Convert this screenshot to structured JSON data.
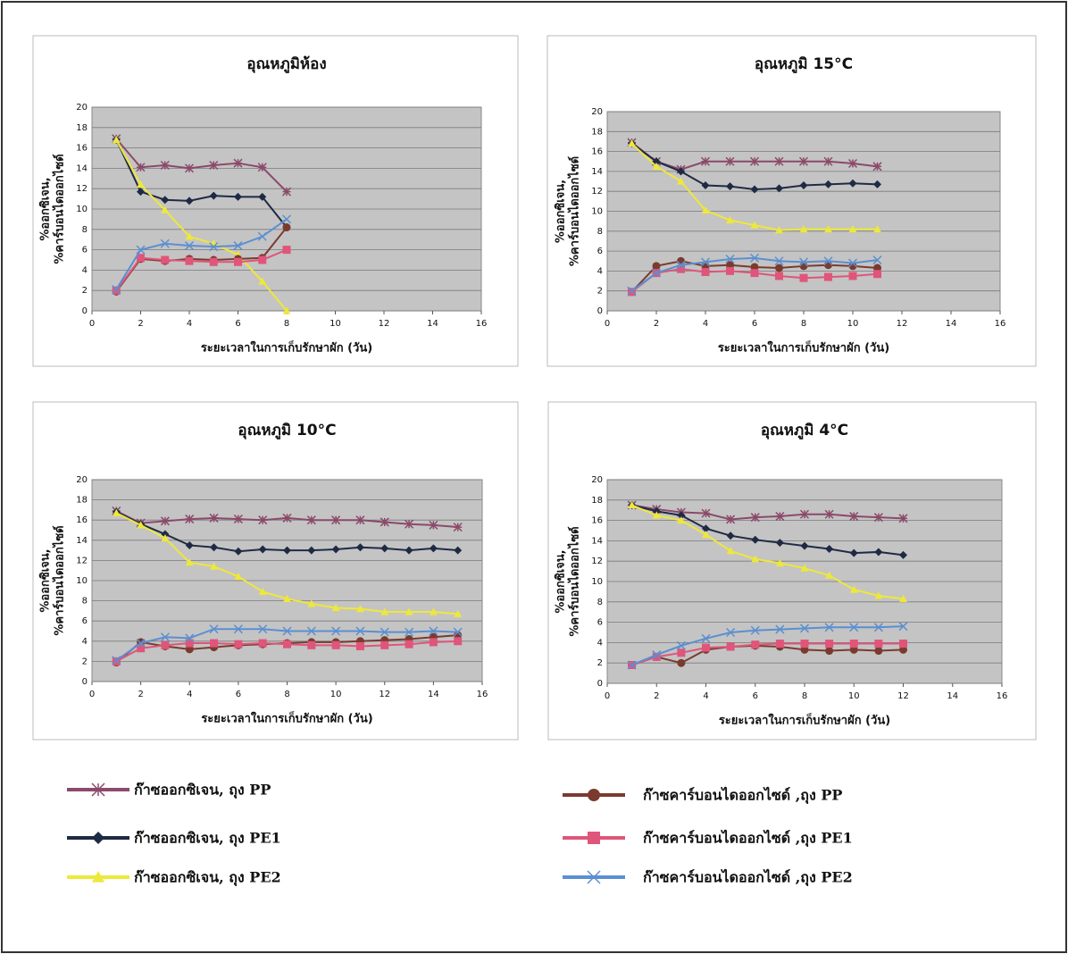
{
  "chart_data": [
    {
      "type": "line",
      "title": "อุณหภูมิห้อง",
      "xlabel": "ระยะเวลาในการเก็บรักษาผัก (วัน)",
      "ylabel": [
        "%ออกซิเจน,",
        "%คาร์บอนไดออกไซด์"
      ],
      "x": [
        1,
        2,
        3,
        4,
        5,
        6,
        7,
        8
      ],
      "xlim": [
        0,
        16
      ],
      "xticks": [
        0,
        2,
        4,
        6,
        8,
        10,
        12,
        14,
        16
      ],
      "ylim": [
        0,
        20
      ],
      "yticks": [
        0,
        2,
        4,
        6,
        8,
        10,
        12,
        14,
        16,
        18,
        20
      ],
      "grid": true,
      "series": [
        {
          "values": [
            16.9,
            14.1,
            14.3,
            14.0,
            14.3,
            14.5,
            14.1,
            11.7
          ]
        },
        {
          "values": [
            16.8,
            11.7,
            10.9,
            10.8,
            11.3,
            11.2,
            11.2,
            8.2
          ]
        },
        {
          "values": [
            16.8,
            12.4,
            9.9,
            7.3,
            6.6,
            5.5,
            2.9,
            0
          ]
        },
        {
          "values": [
            1.9,
            5.1,
            4.9,
            5.1,
            5.0,
            5.1,
            5.2,
            8.2
          ]
        },
        {
          "values": [
            2.0,
            5.2,
            5.0,
            4.9,
            4.8,
            4.8,
            5.0,
            6.0
          ]
        },
        {
          "values": [
            2.1,
            6.0,
            6.6,
            6.4,
            6.3,
            6.4,
            7.3,
            9.0
          ]
        }
      ]
    },
    {
      "type": "line",
      "title": "อุณหภูมิ 15°C",
      "xlabel": "ระยะเวลาในการเก็บรักษาผัก (วัน)",
      "ylabel": [
        "%ออกซิเจน,",
        "%คาร์บอนไดออกไซด์"
      ],
      "x": [
        1,
        2,
        3,
        4,
        5,
        6,
        7,
        8,
        9,
        10,
        11
      ],
      "xlim": [
        0,
        16
      ],
      "xticks": [
        0,
        2,
        4,
        6,
        8,
        10,
        12,
        14,
        16
      ],
      "ylim": [
        0,
        20
      ],
      "yticks": [
        0,
        2,
        4,
        6,
        8,
        10,
        12,
        14,
        16,
        18,
        20
      ],
      "grid": true,
      "series": [
        {
          "values": [
            16.9,
            15.0,
            14.2,
            15.0,
            15.0,
            15.0,
            15.0,
            15.0,
            15.0,
            14.8,
            14.5
          ]
        },
        {
          "values": [
            16.8,
            15.0,
            14.0,
            12.6,
            12.5,
            12.2,
            12.3,
            12.6,
            12.7,
            12.8,
            12.7
          ]
        },
        {
          "values": [
            16.8,
            14.5,
            13.0,
            10.1,
            9.1,
            8.6,
            8.1,
            8.2,
            8.2,
            8.2,
            8.2
          ]
        },
        {
          "values": [
            1.9,
            4.5,
            5.0,
            4.5,
            4.6,
            4.4,
            4.3,
            4.5,
            4.6,
            4.5,
            4.3
          ]
        },
        {
          "values": [
            1.9,
            3.8,
            4.2,
            3.9,
            4.0,
            3.8,
            3.5,
            3.3,
            3.4,
            3.5,
            3.7
          ]
        },
        {
          "values": [
            2.0,
            3.8,
            4.6,
            4.9,
            5.2,
            5.3,
            5.0,
            4.9,
            5.0,
            4.8,
            5.1
          ]
        }
      ]
    },
    {
      "type": "line",
      "title": "อุณหภูมิ 10°C",
      "xlabel": "ระยะเวลาในการเก็บรักษาผัก (วัน)",
      "ylabel": [
        "%ออกซิเจน,",
        "%คาร์บอนไดออกไซด์"
      ],
      "x": [
        1,
        2,
        3,
        4,
        5,
        6,
        7,
        8,
        9,
        10,
        11,
        12,
        13,
        14,
        15
      ],
      "xlim": [
        0,
        16
      ],
      "xticks": [
        0,
        2,
        4,
        6,
        8,
        10,
        12,
        14,
        16
      ],
      "ylim": [
        0,
        20
      ],
      "yticks": [
        0,
        2,
        4,
        6,
        8,
        10,
        12,
        14,
        16,
        18,
        20
      ],
      "grid": true,
      "series": [
        {
          "values": [
            16.9,
            15.7,
            15.9,
            16.1,
            16.2,
            16.1,
            16.0,
            16.2,
            16.0,
            16.0,
            16.0,
            15.8,
            15.6,
            15.5,
            15.3
          ]
        },
        {
          "values": [
            16.8,
            15.6,
            14.6,
            13.5,
            13.3,
            12.9,
            13.1,
            13.0,
            13.0,
            13.1,
            13.3,
            13.2,
            13.0,
            13.2,
            13.0
          ]
        },
        {
          "values": [
            16.7,
            15.5,
            14.2,
            11.8,
            11.4,
            10.4,
            8.9,
            8.2,
            7.7,
            7.3,
            7.2,
            6.9,
            6.9,
            6.9,
            6.7
          ]
        },
        {
          "values": [
            1.9,
            3.9,
            3.5,
            3.2,
            3.4,
            3.6,
            3.7,
            3.8,
            3.9,
            3.9,
            4.0,
            4.1,
            4.2,
            4.4,
            4.6
          ]
        },
        {
          "values": [
            2.0,
            3.3,
            3.6,
            3.8,
            3.8,
            3.7,
            3.8,
            3.7,
            3.6,
            3.6,
            3.5,
            3.6,
            3.7,
            3.9,
            4.0
          ]
        },
        {
          "values": [
            2.1,
            3.8,
            4.4,
            4.3,
            5.2,
            5.2,
            5.2,
            5.0,
            5.0,
            5.0,
            5.0,
            4.9,
            4.9,
            5.0,
            4.9
          ]
        }
      ]
    },
    {
      "type": "line",
      "title": "อุณหภูมิ 4°C",
      "xlabel": "ระยะเวลาในการเก็บรักษาผัก (วัน)",
      "ylabel": [
        "%ออกซิเจน,",
        "%คาร์บอนไดออกไซด์"
      ],
      "x": [
        1,
        2,
        3,
        4,
        5,
        6,
        7,
        8,
        9,
        10,
        11,
        12
      ],
      "xlim": [
        0,
        16
      ],
      "xticks": [
        0,
        2,
        4,
        6,
        8,
        10,
        12,
        14,
        16
      ],
      "ylim": [
        0,
        20
      ],
      "yticks": [
        0,
        2,
        4,
        6,
        8,
        10,
        12,
        14,
        16,
        18,
        20
      ],
      "grid": true,
      "series": [
        {
          "values": [
            17.5,
            17.1,
            16.8,
            16.7,
            16.1,
            16.3,
            16.4,
            16.6,
            16.6,
            16.4,
            16.3,
            16.2
          ]
        },
        {
          "values": [
            17.5,
            16.9,
            16.5,
            15.2,
            14.5,
            14.1,
            13.8,
            13.5,
            13.2,
            12.8,
            12.9,
            12.6
          ]
        },
        {
          "values": [
            17.5,
            16.5,
            16.0,
            14.6,
            13.0,
            12.2,
            11.8,
            11.3,
            10.6,
            9.2,
            8.6,
            8.3
          ]
        },
        {
          "values": [
            1.8,
            2.6,
            2.0,
            3.3,
            3.6,
            3.7,
            3.6,
            3.3,
            3.2,
            3.3,
            3.2,
            3.3
          ]
        },
        {
          "values": [
            1.8,
            2.6,
            3.0,
            3.5,
            3.6,
            3.8,
            3.9,
            3.9,
            3.9,
            3.9,
            3.9,
            3.9
          ]
        },
        {
          "values": [
            1.8,
            2.8,
            3.7,
            4.4,
            5.0,
            5.2,
            5.3,
            5.4,
            5.5,
            5.5,
            5.5,
            5.6
          ]
        }
      ]
    }
  ],
  "legend": {
    "entries": [
      {
        "name": "ก๊าซออกซิเจน, ถุง PP",
        "color": "#8b4a6b",
        "marker": "star"
      },
      {
        "name": "ก๊าซออกซิเจน, ถุง PE1",
        "color": "#1f2a44",
        "marker": "diamond"
      },
      {
        "name": "ก๊าซออกซิเจน, ถุง PE2",
        "color": "#eee83a",
        "marker": "triangle"
      },
      {
        "name": "ก๊าซคาร์บอนไดออกไซด์ ,ถุง PP",
        "color": "#7a3b2e",
        "marker": "circle"
      },
      {
        "name": "ก๊าซคาร์บอนไดออกไซด์ ,ถุง PE1",
        "color": "#e0557a",
        "marker": "square"
      },
      {
        "name": "ก๊าซคาร์บอนไดออกไซด์ ,ถุง PE2",
        "color": "#5b8fd0",
        "marker": "x"
      }
    ]
  }
}
